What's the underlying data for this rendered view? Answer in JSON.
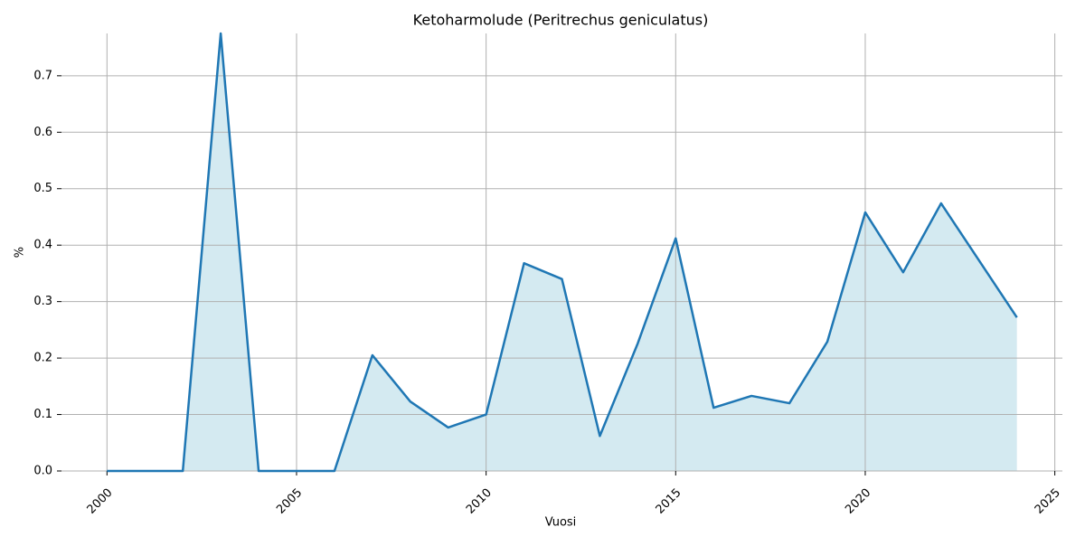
{
  "chart_data": {
    "type": "area_line",
    "title": "Ketoharmolude (Peritrechus geniculatus)",
    "x_label": "Vuosi",
    "y_label": "%",
    "x": [
      2000,
      2001,
      2002,
      2003,
      2004,
      2005,
      2006,
      2007,
      2008,
      2009,
      2010,
      2011,
      2012,
      2013,
      2014,
      2015,
      2016,
      2017,
      2018,
      2019,
      2020,
      2021,
      2022,
      2023,
      2024
    ],
    "values": [
      0,
      0,
      0,
      0.775,
      0,
      0,
      0,
      0.205,
      0.123,
      0.077,
      0.1,
      0.368,
      0.34,
      0.062,
      0.226,
      0.412,
      0.112,
      0.133,
      0.12,
      0.229,
      0.458,
      0.352,
      0.474,
      0.373,
      0.272
    ],
    "color": "#1f77b4",
    "fill_color": "#d4eaf1",
    "xlim": [
      1998.8,
      2025.2
    ],
    "xticks": [
      2000,
      2005,
      2010,
      2015,
      2020,
      2025
    ],
    "ylim": [
      0,
      0.775
    ],
    "yticks": [
      {
        "value": 0,
        "label": "0.0"
      },
      0.1,
      0.2,
      0.3,
      0.4,
      0.5,
      0.6,
      0.7
    ],
    "grid": true
  }
}
